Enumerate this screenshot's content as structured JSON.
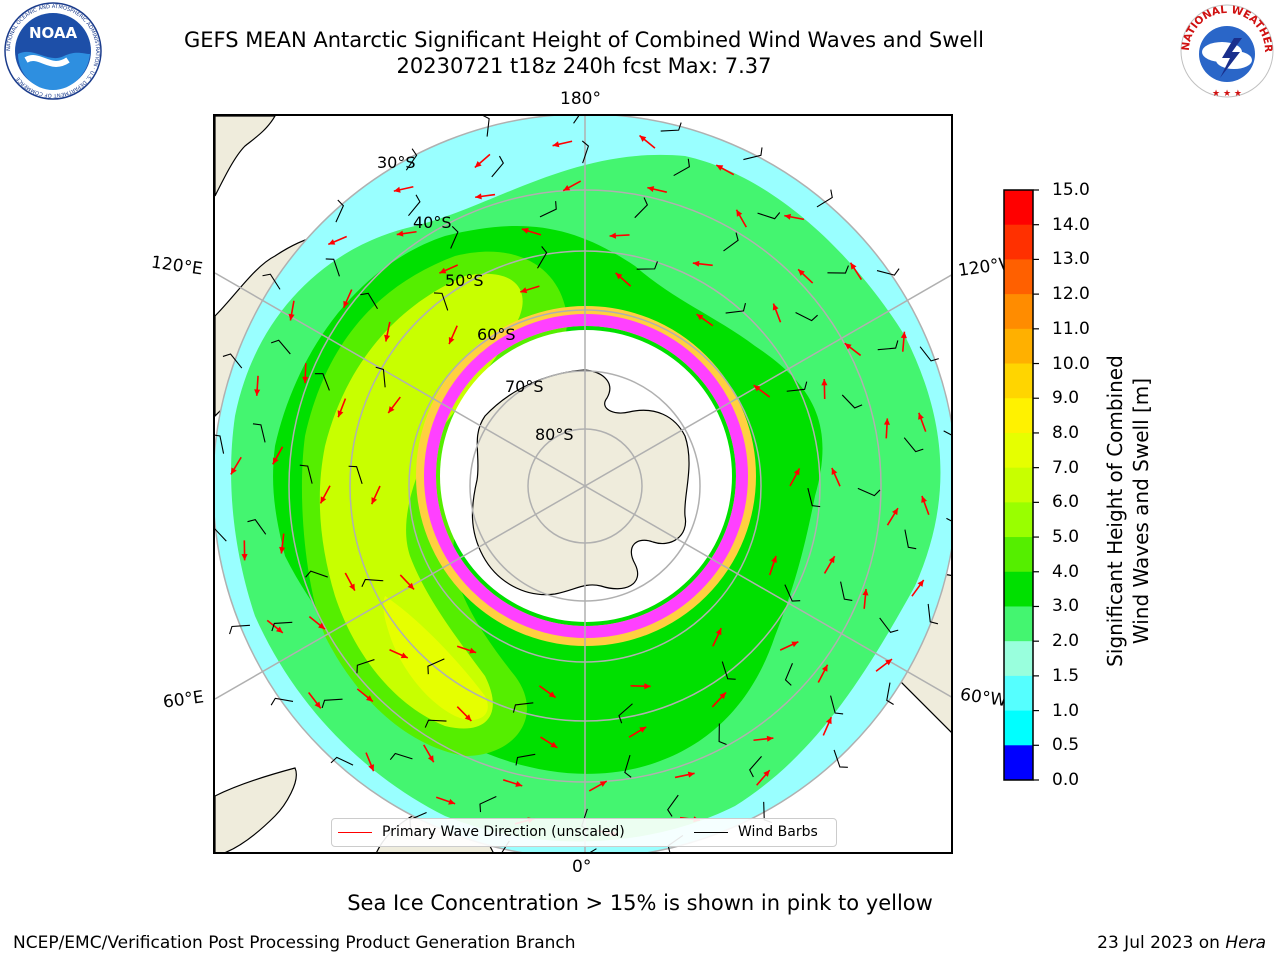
{
  "title": {
    "line1": "GEFS MEAN Antarctic Significant Height of Combined Wind Waves and Swell",
    "line2": "20230721 t18z 240h fcst   Max: 7.37"
  },
  "logos": {
    "left": "noaa-logo",
    "left_text": "NOAA",
    "left_ring_text": "NATIONAL OCEANIC AND ATMOSPHERIC ADMINISTRATION · U.S. DEPARTMENT OF COMMERCE",
    "right": "nws-logo",
    "right_ring_text": "NATIONAL WEATHER SERVICE"
  },
  "map": {
    "projection": "south-polar-stereographic",
    "longitude_labels": {
      "top": "180°",
      "bottom": "0°",
      "left_upper": "120°E",
      "left_lower": "60°E",
      "right_upper": "120°W",
      "right_lower": "60°W"
    },
    "latitude_labels": [
      "30°S",
      "40°S",
      "50°S",
      "60°S",
      "70°S",
      "80°S"
    ],
    "colors": {
      "land": "#efecdc",
      "ice_free_sea_ice": "#ffffff",
      "sea_ice_ring_pink": "#ff40ff",
      "sea_ice_ring_yellow": "#ffd040",
      "gridline": "#b0b0b0"
    }
  },
  "legend": {
    "wave_label": "Primary Wave Direction (unscaled)",
    "wave_color": "#ff0000",
    "barb_label": "Wind Barbs",
    "barb_color": "#000000"
  },
  "colorbar": {
    "label_line1": "Significant Height of Combined",
    "label_line2": "Wind Waves and Swell [m]",
    "ticks": [
      "15.0",
      "14.0",
      "13.0",
      "12.0",
      "11.0",
      "10.0",
      "9.0",
      "8.0",
      "7.0",
      "6.0",
      "5.0",
      "4.0",
      "3.0",
      "2.0",
      "1.5",
      "1.0",
      "0.5",
      "0.0"
    ],
    "colors_top_to_bottom": [
      "#ff0000",
      "#ff3000",
      "#ff6000",
      "#ff8c00",
      "#ffb000",
      "#ffd500",
      "#fff200",
      "#e6ff00",
      "#c8ff00",
      "#99ff00",
      "#55ee00",
      "#00e000",
      "#44f570",
      "#99ffdd",
      "#55ffff",
      "#00ffff",
      "#0080ff",
      "#0000ff"
    ]
  },
  "sea_ice_note": "Sea Ice Concentration > 15% is shown in pink to yellow",
  "footer": {
    "left": "NCEP/EMC/Verification Post Processing Product Generation Branch",
    "right_date": "23 Jul 2023 on ",
    "right_machine": "Hera"
  }
}
